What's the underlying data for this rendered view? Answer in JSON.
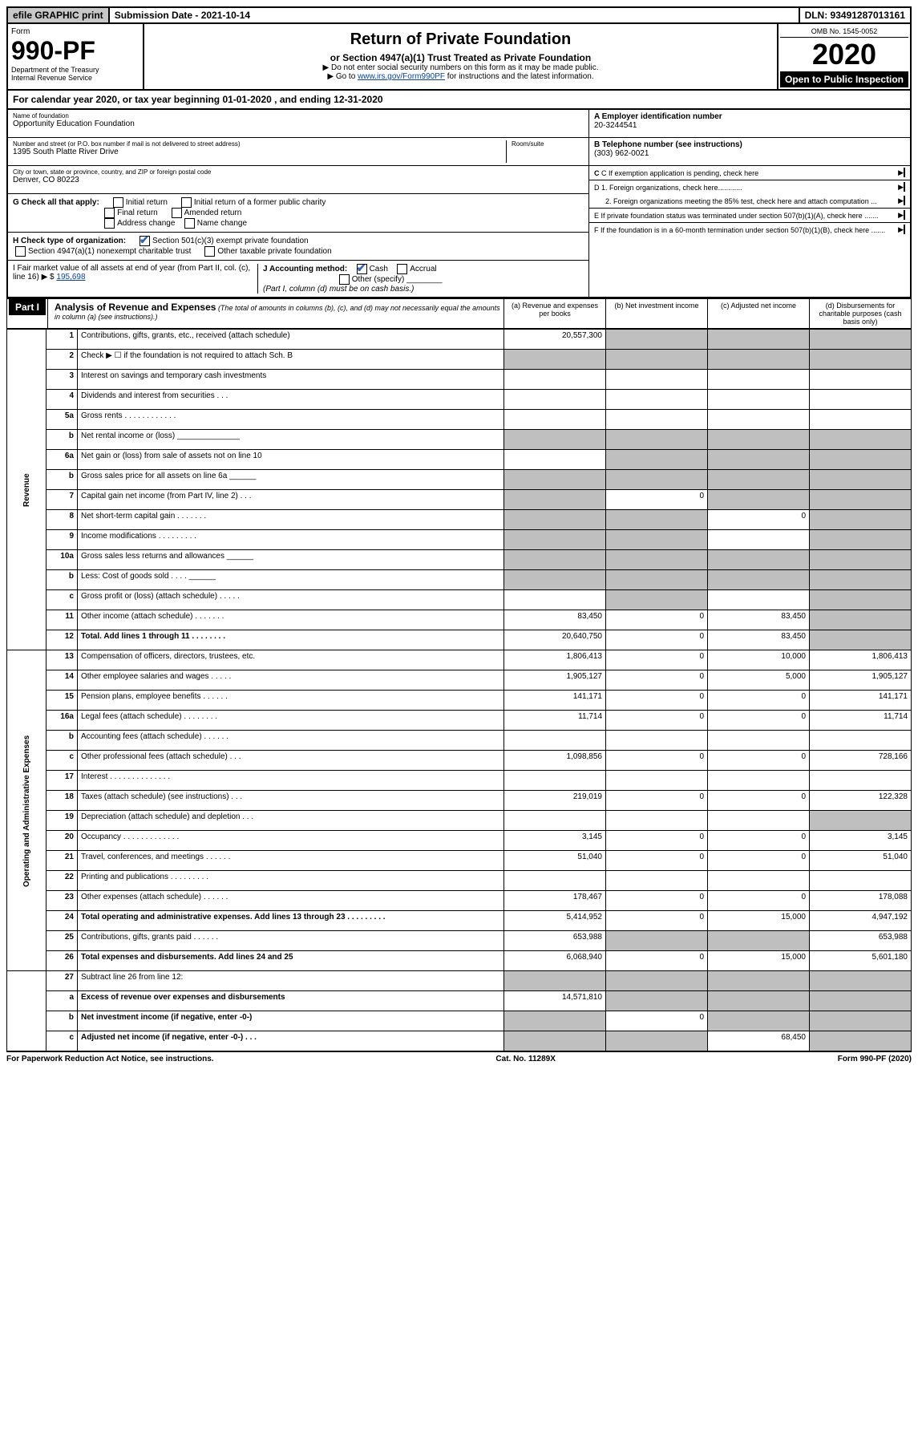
{
  "topbar": {
    "efile": "efile GRAPHIC print",
    "submission": "Submission Date - 2021-10-14",
    "dln": "DLN: 93491287013161"
  },
  "header": {
    "form_label": "Form",
    "form_num": "990-PF",
    "dept": "Department of the Treasury\nInternal Revenue Service",
    "title": "Return of Private Foundation",
    "subtitle": "or Section 4947(a)(1) Trust Treated as Private Foundation",
    "note1": "▶ Do not enter social security numbers on this form as it may be made public.",
    "note2_pre": "▶ Go to ",
    "note2_link": "www.irs.gov/Form990PF",
    "note2_post": " for instructions and the latest information.",
    "omb": "OMB No. 1545-0052",
    "year": "2020",
    "open": "Open to Public Inspection"
  },
  "calyear": "For calendar year 2020, or tax year beginning 01-01-2020             , and ending 12-31-2020",
  "info": {
    "name_label": "Name of foundation",
    "name": "Opportunity Education Foundation",
    "addr_label": "Number and street (or P.O. box number if mail is not delivered to street address)",
    "addr": "1395 South Platte River Drive",
    "room_label": "Room/suite",
    "city_label": "City or town, state or province, country, and ZIP or foreign postal code",
    "city": "Denver, CO  80223",
    "a_label": "A Employer identification number",
    "a_val": "20-3244541",
    "b_label": "B Telephone number (see instructions)",
    "b_val": "(303) 962-0021",
    "c_label": "C If exemption application is pending, check here",
    "d1": "D 1. Foreign organizations, check here............",
    "d2": "2. Foreign organizations meeting the 85% test, check here and attach computation ...",
    "e": "E  If private foundation status was terminated under section 507(b)(1)(A), check here .......",
    "f": "F  If the foundation is in a 60-month termination under section 507(b)(1)(B), check here .......",
    "g_label": "G Check all that apply:",
    "g_opts": [
      "Initial return",
      "Initial return of a former public charity",
      "Final return",
      "Amended return",
      "Address change",
      "Name change"
    ],
    "h_label": "H Check type of organization:",
    "h1": "Section 501(c)(3) exempt private foundation",
    "h2": "Section 4947(a)(1) nonexempt charitable trust",
    "h3": "Other taxable private foundation",
    "i_label": "I Fair market value of all assets at end of year (from Part II, col. (c), line 16) ▶ $",
    "i_val": "195,698",
    "j_label": "J Accounting method:",
    "j_cash": "Cash",
    "j_accrual": "Accrual",
    "j_other": "Other (specify)",
    "j_note": "(Part I, column (d) must be on cash basis.)"
  },
  "part1": {
    "label": "Part I",
    "title": "Analysis of Revenue and Expenses",
    "title_note": "(The total of amounts in columns (b), (c), and (d) may not necessarily equal the amounts in column (a) (see instructions).)",
    "col_a": "(a)   Revenue and expenses per books",
    "col_b": "(b)   Net investment income",
    "col_c": "(c)   Adjusted net income",
    "col_d": "(d)   Disbursements for charitable purposes (cash basis only)"
  },
  "sections": {
    "revenue": "Revenue",
    "opex": "Operating and Administrative Expenses"
  },
  "rows": [
    {
      "n": "1",
      "d": "Contributions, gifts, grants, etc., received (attach schedule)",
      "a": "20,557,300",
      "b_s": 1,
      "c_s": 1,
      "d_s": 1
    },
    {
      "n": "2",
      "d": "Check ▶ ☐ if the foundation is not required to attach Sch. B",
      "dots": 1,
      "a_s": 1,
      "b_s": 1,
      "c_s": 1,
      "d_s": 1
    },
    {
      "n": "3",
      "d": "Interest on savings and temporary cash investments"
    },
    {
      "n": "4",
      "d": "Dividends and interest from securities   .   .   ."
    },
    {
      "n": "5a",
      "d": "Gross rents   .   .   .   .   .   .   .   .   .   .   .   ."
    },
    {
      "n": "b",
      "d": "Net rental income or (loss)  ______________",
      "a_s": 1,
      "b_s": 1,
      "c_s": 1,
      "d_s": 1
    },
    {
      "n": "6a",
      "d": "Net gain or (loss) from sale of assets not on line 10",
      "b_s": 1,
      "c_s": 1,
      "d_s": 1
    },
    {
      "n": "b",
      "d": "Gross sales price for all assets on line 6a ______",
      "a_s": 1,
      "b_s": 1,
      "c_s": 1,
      "d_s": 1
    },
    {
      "n": "7",
      "d": "Capital gain net income (from Part IV, line 2)   .   .   .",
      "a_s": 1,
      "b": "0",
      "c_s": 1,
      "d_s": 1
    },
    {
      "n": "8",
      "d": "Net short-term capital gain   .   .   .   .   .   .   .",
      "a_s": 1,
      "b_s": 1,
      "c": "0",
      "d_s": 1
    },
    {
      "n": "9",
      "d": "Income modifications   .   .   .   .   .   .   .   .   .",
      "a_s": 1,
      "b_s": 1,
      "d_s": 1
    },
    {
      "n": "10a",
      "d": "Gross sales less returns and allowances  ______",
      "a_s": 1,
      "b_s": 1,
      "c_s": 1,
      "d_s": 1
    },
    {
      "n": "b",
      "d": "Less: Cost of goods sold   .   .   .   .   ______",
      "a_s": 1,
      "b_s": 1,
      "c_s": 1,
      "d_s": 1
    },
    {
      "n": "c",
      "d": "Gross profit or (loss) (attach schedule)   .   .   .   .   .",
      "b_s": 1,
      "d_s": 1
    },
    {
      "n": "11",
      "d": "Other income (attach schedule)   .   .   .   .   .   .   .",
      "a": "83,450",
      "b": "0",
      "c": "83,450",
      "d_s": 1
    },
    {
      "n": "12",
      "d": "Total. Add lines 1 through 11   .   .   .   .   .   .   .   .",
      "bold": 1,
      "a": "20,640,750",
      "b": "0",
      "c": "83,450",
      "d_s": 1
    }
  ],
  "rows2": [
    {
      "n": "13",
      "d": "Compensation of officers, directors, trustees, etc.",
      "a": "1,806,413",
      "b": "0",
      "c": "10,000",
      "dd": "1,806,413"
    },
    {
      "n": "14",
      "d": "Other employee salaries and wages   .   .   .   .   .",
      "a": "1,905,127",
      "b": "0",
      "c": "5,000",
      "dd": "1,905,127"
    },
    {
      "n": "15",
      "d": "Pension plans, employee benefits   .   .   .   .   .   .",
      "a": "141,171",
      "b": "0",
      "c": "0",
      "dd": "141,171"
    },
    {
      "n": "16a",
      "d": "Legal fees (attach schedule)   .   .   .   .   .   .   .   .",
      "a": "11,714",
      "b": "0",
      "c": "0",
      "dd": "11,714"
    },
    {
      "n": "b",
      "d": "Accounting fees (attach schedule)   .   .   .   .   .   ."
    },
    {
      "n": "c",
      "d": "Other professional fees (attach schedule)   .   .   .",
      "a": "1,098,856",
      "b": "0",
      "c": "0",
      "dd": "728,166"
    },
    {
      "n": "17",
      "d": "Interest   .   .   .   .   .   .   .   .   .   .   .   .   .   ."
    },
    {
      "n": "18",
      "d": "Taxes (attach schedule) (see instructions)   .   .   .",
      "a": "219,019",
      "b": "0",
      "c": "0",
      "dd": "122,328"
    },
    {
      "n": "19",
      "d": "Depreciation (attach schedule) and depletion   .   .   .",
      "d_s": 1
    },
    {
      "n": "20",
      "d": "Occupancy   .   .   .   .   .   .   .   .   .   .   .   .   .",
      "a": "3,145",
      "b": "0",
      "c": "0",
      "dd": "3,145"
    },
    {
      "n": "21",
      "d": "Travel, conferences, and meetings   .   .   .   .   .   .",
      "a": "51,040",
      "b": "0",
      "c": "0",
      "dd": "51,040"
    },
    {
      "n": "22",
      "d": "Printing and publications   .   .   .   .   .   .   .   .   ."
    },
    {
      "n": "23",
      "d": "Other expenses (attach schedule)   .   .   .   .   .   .",
      "a": "178,467",
      "b": "0",
      "c": "0",
      "dd": "178,088"
    },
    {
      "n": "24",
      "d": "Total operating and administrative expenses. Add lines 13 through 23   .   .   .   .   .   .   .   .   .",
      "bold": 1,
      "a": "5,414,952",
      "b": "0",
      "c": "15,000",
      "dd": "4,947,192"
    },
    {
      "n": "25",
      "d": "Contributions, gifts, grants paid   .   .   .   .   .   .",
      "a": "653,988",
      "b_s": 1,
      "c_s": 1,
      "dd": "653,988"
    },
    {
      "n": "26",
      "d": "Total expenses and disbursements. Add lines 24 and 25",
      "bold": 1,
      "a": "6,068,940",
      "b": "0",
      "c": "15,000",
      "dd": "5,601,180"
    }
  ],
  "rows3": [
    {
      "n": "27",
      "d": "Subtract line 26 from line 12:",
      "a_s": 1,
      "b_s": 1,
      "c_s": 1,
      "d_s": 1
    },
    {
      "n": "a",
      "d": "Excess of revenue over expenses and disbursements",
      "bold": 1,
      "a": "14,571,810",
      "b_s": 1,
      "c_s": 1,
      "d_s": 1
    },
    {
      "n": "b",
      "d": "Net investment income (if negative, enter -0-)",
      "bold": 1,
      "a_s": 1,
      "b": "0",
      "c_s": 1,
      "d_s": 1
    },
    {
      "n": "c",
      "d": "Adjusted net income (if negative, enter -0-)   .   .   .",
      "bold": 1,
      "a_s": 1,
      "b_s": 1,
      "c": "68,450",
      "d_s": 1
    }
  ],
  "footer": {
    "left": "For Paperwork Reduction Act Notice, see instructions.",
    "mid": "Cat. No. 11289X",
    "right": "Form 990-PF (2020)"
  }
}
